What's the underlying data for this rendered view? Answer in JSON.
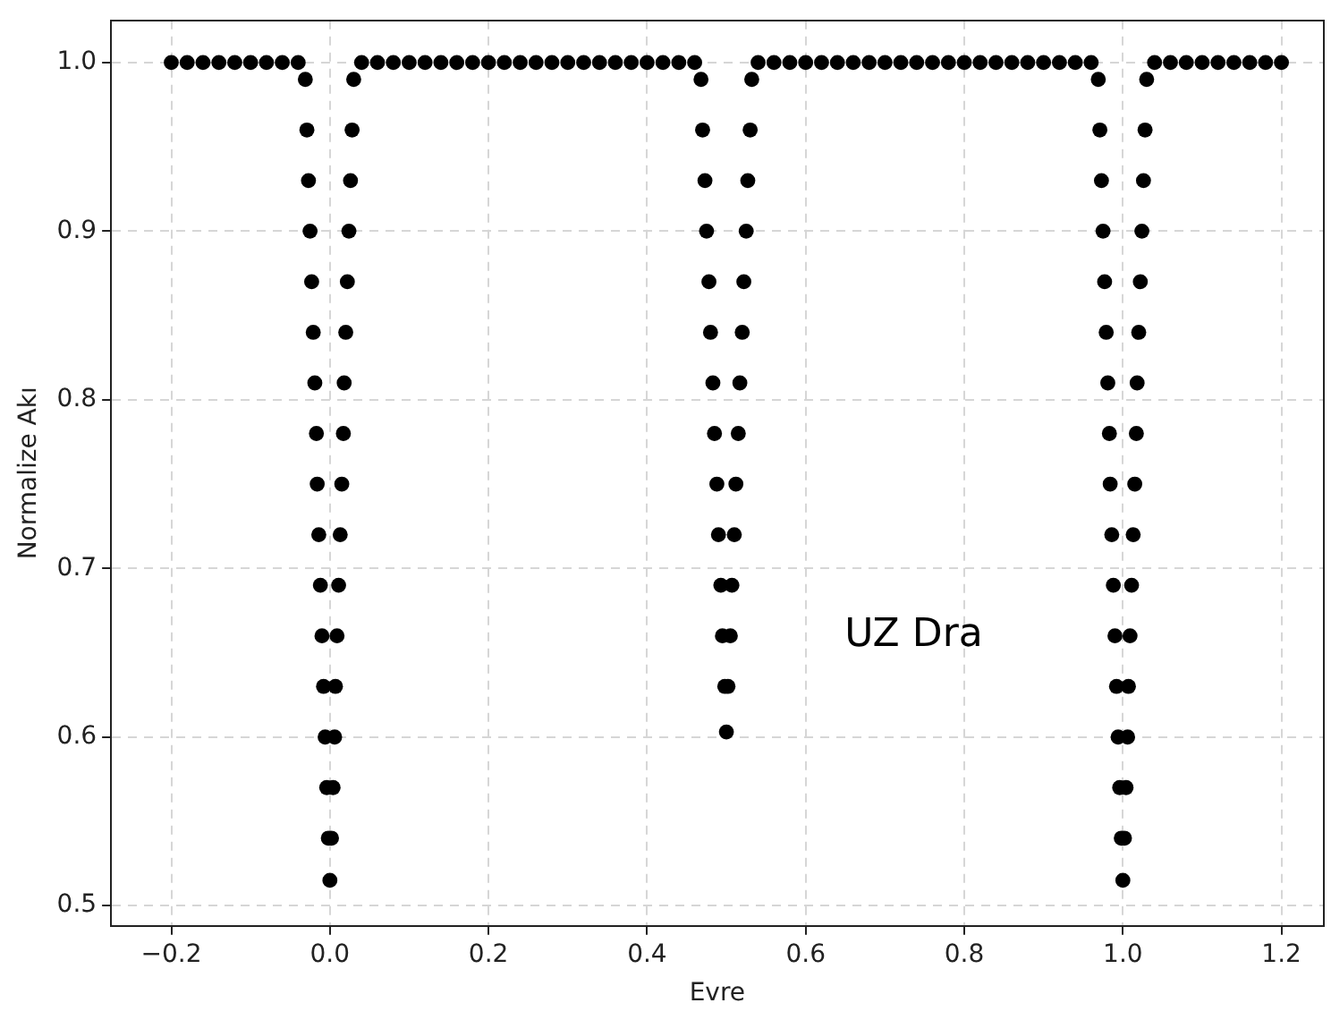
{
  "chart_data": {
    "type": "scatter",
    "xlabel": "Evre",
    "ylabel": "Normalize Akı",
    "annotations": [
      "UZ Dra"
    ],
    "xlim": [
      -0.276,
      1.253
    ],
    "ylim": [
      0.488,
      1.025
    ],
    "xticks": [
      {
        "value": -0.2,
        "label": "−0.2"
      },
      {
        "value": 0,
        "label": "0.0"
      },
      0.2,
      0.4,
      0.6,
      0.8,
      {
        "value": 1,
        "label": "1.0"
      },
      1.2
    ],
    "yticks": [
      0.5,
      0.6,
      0.7,
      0.8,
      0.9,
      {
        "value": 1,
        "label": "1.0"
      }
    ],
    "grid": true,
    "marker": "circle",
    "series": [
      {
        "color": "#000000",
        "x": [
          -0.2,
          -0.18,
          -0.16,
          -0.14,
          -0.12,
          -0.1,
          -0.08,
          -0.06,
          -0.04,
          -0.031,
          -0.029,
          -0.027,
          -0.025,
          -0.023,
          -0.021,
          -0.019,
          -0.017,
          -0.016,
          -0.014,
          -0.012,
          -0.01,
          -0.008,
          -0.006,
          -0.004,
          -0.002,
          0.0,
          0.002,
          0.004,
          0.006,
          0.007,
          0.009,
          0.011,
          0.013,
          0.015,
          0.017,
          0.018,
          0.02,
          0.022,
          0.024,
          0.026,
          0.028,
          0.03,
          0.04,
          0.06,
          0.08,
          0.1,
          0.12,
          0.14,
          0.16,
          0.18,
          0.2,
          0.22,
          0.24,
          0.26,
          0.28,
          0.3,
          0.32,
          0.34,
          0.36,
          0.38,
          0.4,
          0.42,
          0.44,
          0.46,
          0.468,
          0.47,
          0.473,
          0.475,
          0.478,
          0.48,
          0.483,
          0.485,
          0.488,
          0.49,
          0.493,
          0.495,
          0.498,
          0.5,
          0.502,
          0.505,
          0.507,
          0.51,
          0.512,
          0.515,
          0.517,
          0.52,
          0.522,
          0.525,
          0.527,
          0.53,
          0.532,
          0.54,
          0.56,
          0.58,
          0.6,
          0.62,
          0.64,
          0.66,
          0.68,
          0.7,
          0.72,
          0.74,
          0.76,
          0.78,
          0.8,
          0.82,
          0.84,
          0.86,
          0.88,
          0.9,
          0.92,
          0.94,
          0.96,
          0.969,
          0.971,
          0.973,
          0.975,
          0.977,
          0.979,
          0.981,
          0.983,
          0.984,
          0.986,
          0.988,
          0.99,
          0.992,
          0.994,
          0.996,
          0.998,
          1.0,
          1.002,
          1.004,
          1.006,
          1.007,
          1.009,
          1.011,
          1.013,
          1.015,
          1.017,
          1.018,
          1.02,
          1.022,
          1.024,
          1.026,
          1.028,
          1.03,
          1.04,
          1.06,
          1.08,
          1.1,
          1.12,
          1.14,
          1.16,
          1.18,
          1.2
        ],
        "values": [
          1.0,
          1.0,
          1.0,
          1.0,
          1.0,
          1.0,
          1.0,
          1.0,
          1.0,
          0.99,
          0.96,
          0.93,
          0.9,
          0.87,
          0.84,
          0.81,
          0.78,
          0.75,
          0.72,
          0.69,
          0.66,
          0.63,
          0.6,
          0.57,
          0.54,
          0.515,
          0.54,
          0.57,
          0.6,
          0.63,
          0.66,
          0.69,
          0.72,
          0.75,
          0.78,
          0.81,
          0.84,
          0.87,
          0.9,
          0.93,
          0.96,
          0.99,
          1.0,
          1.0,
          1.0,
          1.0,
          1.0,
          1.0,
          1.0,
          1.0,
          1.0,
          1.0,
          1.0,
          1.0,
          1.0,
          1.0,
          1.0,
          1.0,
          1.0,
          1.0,
          1.0,
          1.0,
          1.0,
          1.0,
          0.99,
          0.96,
          0.93,
          0.9,
          0.87,
          0.84,
          0.81,
          0.78,
          0.75,
          0.72,
          0.69,
          0.66,
          0.63,
          0.603,
          0.63,
          0.66,
          0.69,
          0.72,
          0.75,
          0.78,
          0.81,
          0.84,
          0.87,
          0.9,
          0.93,
          0.96,
          0.99,
          1.0,
          1.0,
          1.0,
          1.0,
          1.0,
          1.0,
          1.0,
          1.0,
          1.0,
          1.0,
          1.0,
          1.0,
          1.0,
          1.0,
          1.0,
          1.0,
          1.0,
          1.0,
          1.0,
          1.0,
          1.0,
          1.0,
          0.99,
          0.96,
          0.93,
          0.9,
          0.87,
          0.84,
          0.81,
          0.78,
          0.75,
          0.72,
          0.69,
          0.66,
          0.63,
          0.6,
          0.57,
          0.54,
          0.515,
          0.54,
          0.57,
          0.6,
          0.63,
          0.66,
          0.69,
          0.72,
          0.75,
          0.78,
          0.81,
          0.84,
          0.87,
          0.9,
          0.93,
          0.96,
          0.99,
          1.0,
          1.0,
          1.0,
          1.0,
          1.0,
          1.0,
          1.0,
          1.0,
          1.0
        ]
      }
    ]
  }
}
